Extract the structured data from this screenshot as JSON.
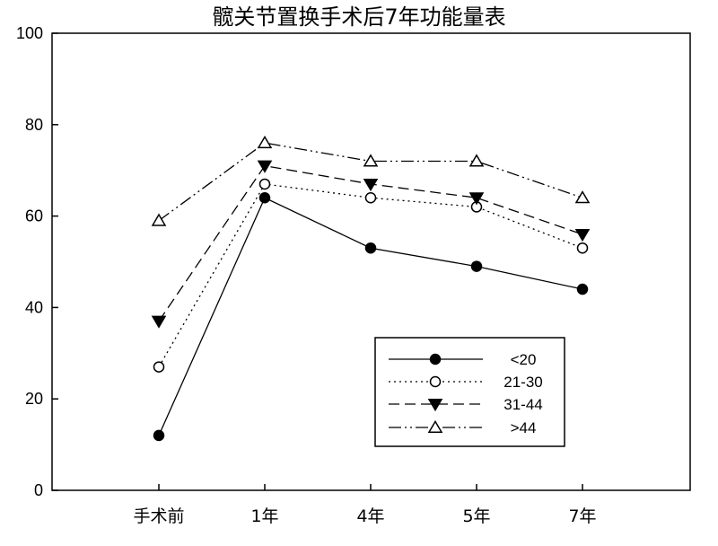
{
  "chart_data": {
    "type": "line",
    "title": "髋关节置换手术后7年功能量表",
    "xlabel": "",
    "ylabel": "",
    "categories": [
      "手术前",
      "1年",
      "4年",
      "5年",
      "7年"
    ],
    "ylim": [
      0,
      100
    ],
    "yticks": [
      0,
      20,
      40,
      60,
      80,
      100
    ],
    "grid": false,
    "legend_position": "bottom-right",
    "series": [
      {
        "name": "<20",
        "values": [
          12,
          64,
          53,
          49,
          44
        ],
        "marker": "filled-circle",
        "line": "solid"
      },
      {
        "name": "21-30",
        "values": [
          27,
          67,
          64,
          62,
          53
        ],
        "marker": "open-circle",
        "line": "dotted"
      },
      {
        "name": "31-44",
        "values": [
          37,
          71,
          67,
          64,
          56
        ],
        "marker": "filled-triangle-down",
        "line": "dashed"
      },
      {
        "name": ">44",
        "values": [
          59,
          76,
          72,
          72,
          64
        ],
        "marker": "open-triangle-up",
        "line": "dash-dot-dot"
      }
    ],
    "colors": {
      "line": "#000000",
      "axes": "#000000",
      "background": "#ffffff"
    }
  }
}
